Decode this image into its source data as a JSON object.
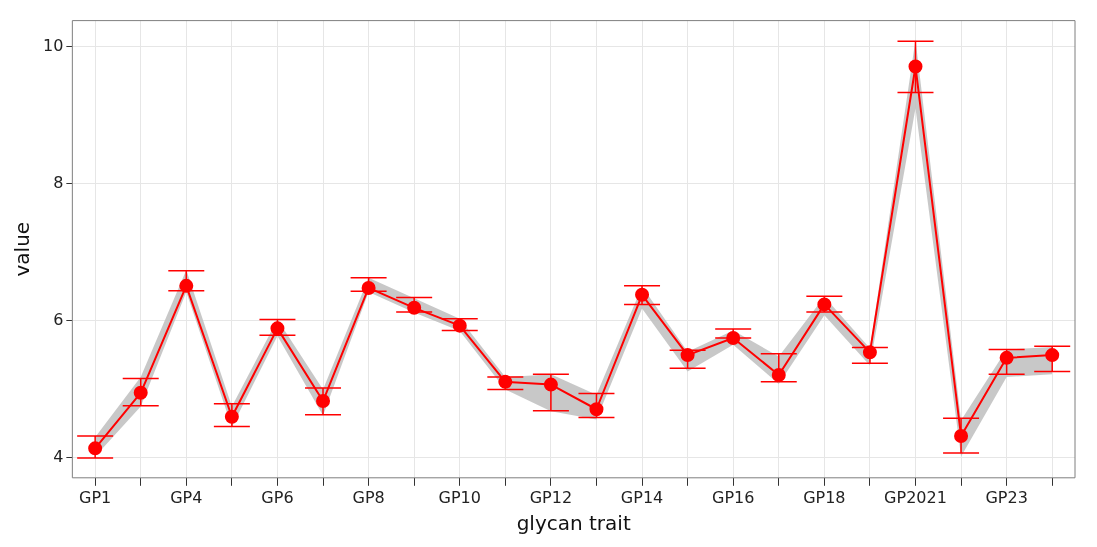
{
  "chart_data": {
    "type": "line",
    "xlabel": "glycan trait",
    "ylabel": "value",
    "categories": [
      "GP1",
      null,
      "GP4",
      null,
      "GP6",
      null,
      "GP8",
      null,
      "GP10",
      null,
      "GP12",
      null,
      "GP14",
      null,
      "GP16",
      null,
      "GP18",
      null,
      "GP2021",
      null,
      "GP23",
      null
    ],
    "series": [
      {
        "color": "#ff0000",
        "values": [
          4.14,
          4.95,
          6.51,
          4.6,
          5.89,
          4.83,
          6.48,
          6.19,
          5.93,
          5.11,
          5.07,
          4.71,
          6.38,
          5.5,
          5.75,
          5.21,
          6.24,
          5.54,
          9.71,
          4.32,
          5.46,
          5.5
        ],
        "errors": [
          [
            4.0,
            4.32
          ],
          [
            4.76,
            5.16
          ],
          [
            6.44,
            6.73
          ],
          [
            4.46,
            4.79
          ],
          [
            5.79,
            6.02
          ],
          [
            4.63,
            5.02
          ],
          [
            6.43,
            6.63
          ],
          [
            6.13,
            6.34
          ],
          [
            5.86,
            6.03
          ],
          [
            5.0,
            5.18
          ],
          [
            4.69,
            5.22
          ],
          [
            4.59,
            4.94
          ],
          [
            6.24,
            6.51
          ],
          [
            5.31,
            5.57
          ],
          [
            5.75,
            5.88
          ],
          [
            5.11,
            5.52
          ],
          [
            6.13,
            6.36
          ],
          [
            5.38,
            5.61
          ],
          [
            9.33,
            10.08
          ],
          [
            4.07,
            4.58
          ],
          [
            5.22,
            5.58
          ],
          [
            5.26,
            5.63
          ]
        ],
        "lower": [
          4.02,
          4.75,
          6.42,
          4.45,
          5.78,
          4.62,
          6.42,
          6.12,
          5.85,
          5.0,
          4.68,
          4.56,
          6.18,
          5.26,
          5.65,
          5.08,
          6.08,
          5.35,
          9.1,
          4.02,
          5.18,
          5.22
        ],
        "upper": [
          4.3,
          5.18,
          6.74,
          4.75,
          6.02,
          5.0,
          6.63,
          6.33,
          6.03,
          5.18,
          5.22,
          4.92,
          6.5,
          5.55,
          5.86,
          5.48,
          6.35,
          5.6,
          10.1,
          4.55,
          5.58,
          5.62
        ]
      }
    ],
    "ylim": [
      3.71,
      10.38
    ],
    "yticks": [
      4,
      6,
      8,
      10
    ],
    "grid": true,
    "legend": false,
    "marker": "circle",
    "line_style": "solid"
  }
}
